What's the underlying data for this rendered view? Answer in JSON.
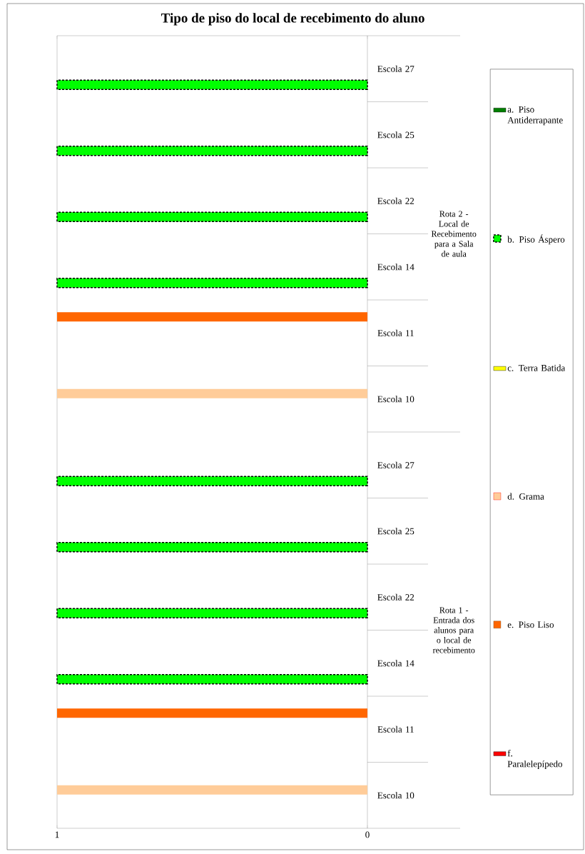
{
  "chart_data": {
    "type": "bar",
    "orientation": "horizontal",
    "title": "Tipo de piso do local de recebimento do aluno",
    "categories": [
      "Escola 27",
      "Escola 25",
      "Escola 22",
      "Escola 14",
      "Escola 11",
      "Escola 10",
      "Escola 27",
      "Escola 25",
      "Escola 22",
      "Escola 14",
      "Escola 11",
      "Escola 10"
    ],
    "annotations": [
      "Rota 2 - Local de Recebimento para a Sala de aula",
      "Rota 1 - Entrada dos alunos para o local de recebimento"
    ],
    "series": [
      {
        "name": "a. Piso Antiderrapante",
        "color": "#007f00",
        "values": [
          null,
          null,
          null,
          null,
          null,
          null,
          null,
          null,
          null,
          null,
          null,
          null
        ]
      },
      {
        "name": "b. Piso Áspero",
        "color": "#00ff00",
        "line_style": "dashed",
        "values": [
          1,
          1,
          1,
          1,
          null,
          null,
          1,
          1,
          1,
          1,
          null,
          null
        ]
      },
      {
        "name": "c. Terra Batida",
        "color": "#ffff00",
        "values": [
          null,
          null,
          null,
          null,
          null,
          null,
          null,
          null,
          null,
          null,
          null,
          null
        ]
      },
      {
        "name": "d. Grama",
        "color": "#ffcc99",
        "values": [
          null,
          null,
          null,
          null,
          null,
          1,
          null,
          null,
          null,
          null,
          null,
          1
        ]
      },
      {
        "name": "e. Piso Liso",
        "color": "#ff6600",
        "values": [
          null,
          null,
          null,
          null,
          1,
          null,
          null,
          null,
          null,
          null,
          1,
          null
        ]
      },
      {
        "name": "f. Paralelepípedo",
        "color": "#ff0000",
        "values": [
          null,
          null,
          null,
          null,
          null,
          null,
          null,
          null,
          null,
          null,
          null,
          null
        ]
      }
    ],
    "xlim": [
      1,
      0
    ],
    "xticks": [
      0,
      1
    ],
    "legend": "right"
  }
}
